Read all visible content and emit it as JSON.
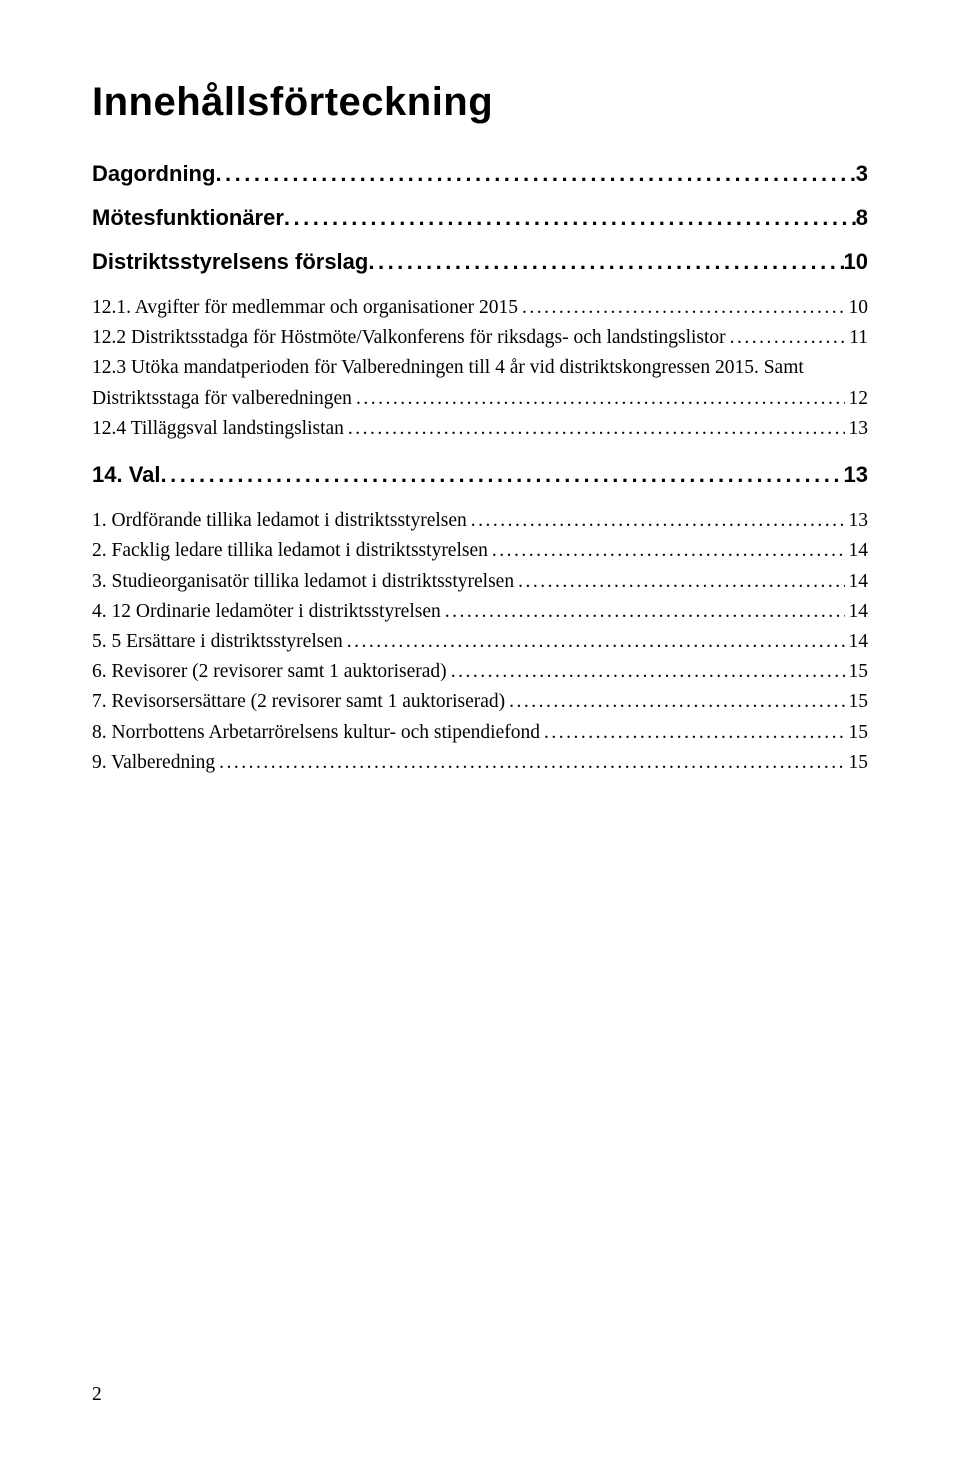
{
  "title": "Innehållsförteckning",
  "page_number": "2",
  "colors": {
    "text": "#000000",
    "background": "#ffffff"
  },
  "typography": {
    "title_fontsize_pt": 30,
    "section_fontsize_pt": 16.5,
    "entry_fontsize_pt": 14.5,
    "title_family": "sans-serif",
    "section_family": "sans-serif",
    "entry_family": "serif"
  },
  "toc": [
    {
      "kind": "section",
      "label": "Dagordning",
      "page": "3"
    },
    {
      "kind": "section",
      "label": "Mötesfunktionärer",
      "page": "8"
    },
    {
      "kind": "section",
      "label": "Distriktsstyrelsens förslag",
      "page": "10"
    },
    {
      "kind": "entry",
      "label": "12.1. Avgifter för medlemmar och organisationer 2015",
      "page": "10"
    },
    {
      "kind": "entry",
      "label": "12.2 Distriktsstadga för Höstmöte/Valkonferens för riksdags- och landstingslistor",
      "page": "11"
    },
    {
      "kind": "entry",
      "label_line1": "12.3   Utöka mandatperioden för Valberedningen till 4 år vid distriktskongressen 2015. Samt",
      "label_line2": "Distriktsstaga för valberedningen",
      "page": "12"
    },
    {
      "kind": "entry",
      "label": "12.4 Tilläggsval landstingslistan",
      "page": "13"
    },
    {
      "kind": "section",
      "label": "14. Val",
      "page": "13"
    },
    {
      "kind": "entry",
      "label": "1.    Ordförande tillika ledamot i distriktsstyrelsen",
      "page": "13"
    },
    {
      "kind": "entry",
      "label": "2.    Facklig ledare tillika ledamot i distriktsstyrelsen",
      "page": "14"
    },
    {
      "kind": "entry",
      "label": "3.    Studieorganisatör tillika ledamot i distriktsstyrelsen",
      "page": "14"
    },
    {
      "kind": "entry",
      "label": "4.    12 Ordinarie ledamöter i distriktsstyrelsen",
      "page": "14"
    },
    {
      "kind": "entry",
      "label": "5.    5 Ersättare i distriktsstyrelsen",
      "page": "14"
    },
    {
      "kind": "entry",
      "label": "6.    Revisorer (2 revisorer samt 1 auktoriserad)",
      "page": "15"
    },
    {
      "kind": "entry",
      "label": "7.    Revisorsersättare (2 revisorer samt 1 auktoriserad)",
      "page": "15"
    },
    {
      "kind": "entry",
      "label": "8.    Norrbottens Arbetarrörelsens kultur- och stipendiefond",
      "page": "15"
    },
    {
      "kind": "entry",
      "label": "9.    Valberedning",
      "page": "15"
    }
  ]
}
